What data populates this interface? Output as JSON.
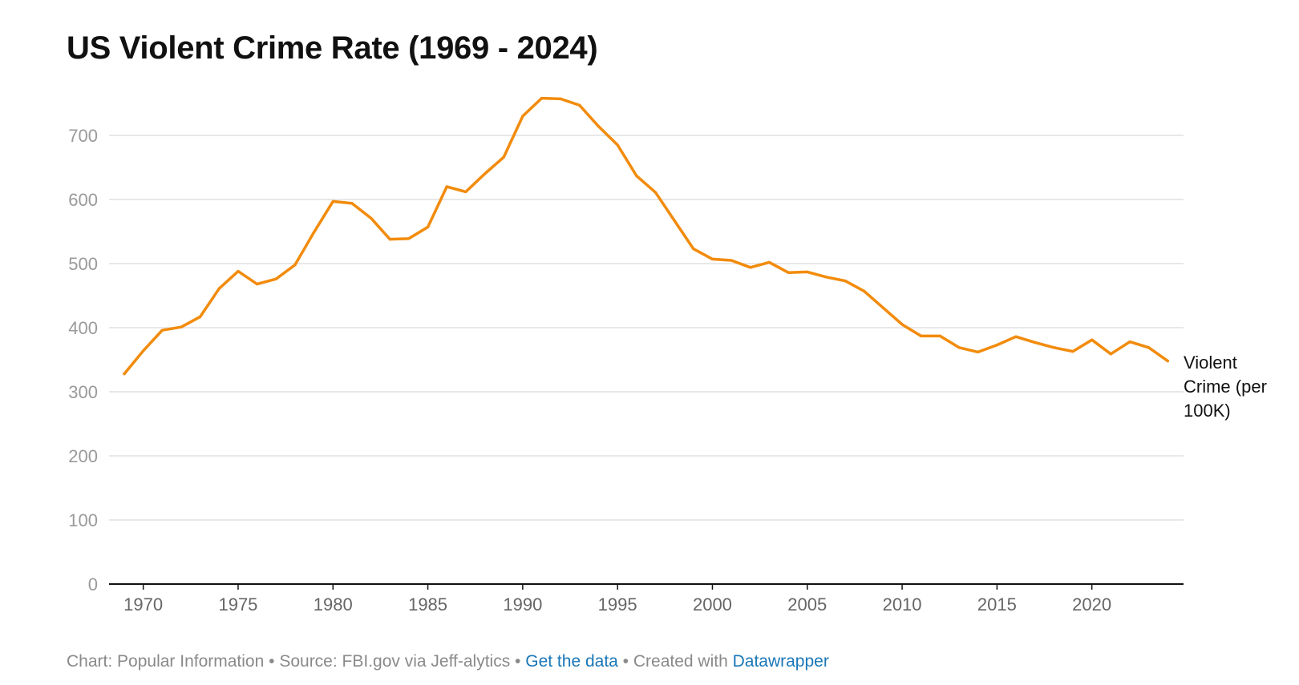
{
  "title": "US Violent Crime Rate (1969 - 2024)",
  "series_label": "Violent Crime (per 100K)",
  "footer": {
    "chart_credit": "Chart: Popular Information",
    "source": "Source: FBI.gov via Jeff-alytics",
    "get_data": "Get the data",
    "created_with": "Created with",
    "datawrapper": "Datawrapper",
    "separator": " • "
  },
  "colors": {
    "line": "#f28b0c",
    "grid": "#e0e0e0",
    "axis": "#111111",
    "tick_text": "#9a9a9a",
    "link": "#1a77b8"
  },
  "chart_data": {
    "type": "line",
    "title": "US Violent Crime Rate (1969 - 2024)",
    "xlabel": "",
    "ylabel": "",
    "xlim": [
      1969,
      2024
    ],
    "ylim": [
      0,
      700
    ],
    "grid": true,
    "x_ticks": [
      1970,
      1975,
      1980,
      1985,
      1990,
      1995,
      2000,
      2005,
      2010,
      2015,
      2020
    ],
    "y_ticks": [
      0,
      100,
      200,
      300,
      400,
      500,
      600,
      700
    ],
    "series": [
      {
        "name": "Violent Crime (per 100K)",
        "x": [
          1969,
          1970,
          1971,
          1972,
          1973,
          1974,
          1975,
          1976,
          1977,
          1978,
          1979,
          1980,
          1981,
          1982,
          1983,
          1984,
          1985,
          1986,
          1987,
          1988,
          1989,
          1990,
          1991,
          1992,
          1993,
          1994,
          1995,
          1996,
          1997,
          1998,
          1999,
          2000,
          2001,
          2002,
          2003,
          2004,
          2005,
          2006,
          2007,
          2008,
          2009,
          2010,
          2011,
          2012,
          2013,
          2014,
          2015,
          2016,
          2017,
          2018,
          2019,
          2020,
          2021,
          2022,
          2023,
          2024
        ],
        "values": [
          328,
          364,
          396,
          401,
          417,
          461,
          488,
          468,
          476,
          498,
          549,
          597,
          594,
          571,
          538,
          539,
          557,
          620,
          612,
          640,
          666,
          730,
          758,
          757,
          747,
          714,
          685,
          637,
          611,
          567,
          523,
          507,
          505,
          494,
          502,
          486,
          487,
          479,
          473,
          457,
          431,
          405,
          387,
          387,
          369,
          362,
          373,
          386,
          377,
          369,
          363,
          381,
          359,
          378,
          369,
          348
        ]
      }
    ]
  }
}
